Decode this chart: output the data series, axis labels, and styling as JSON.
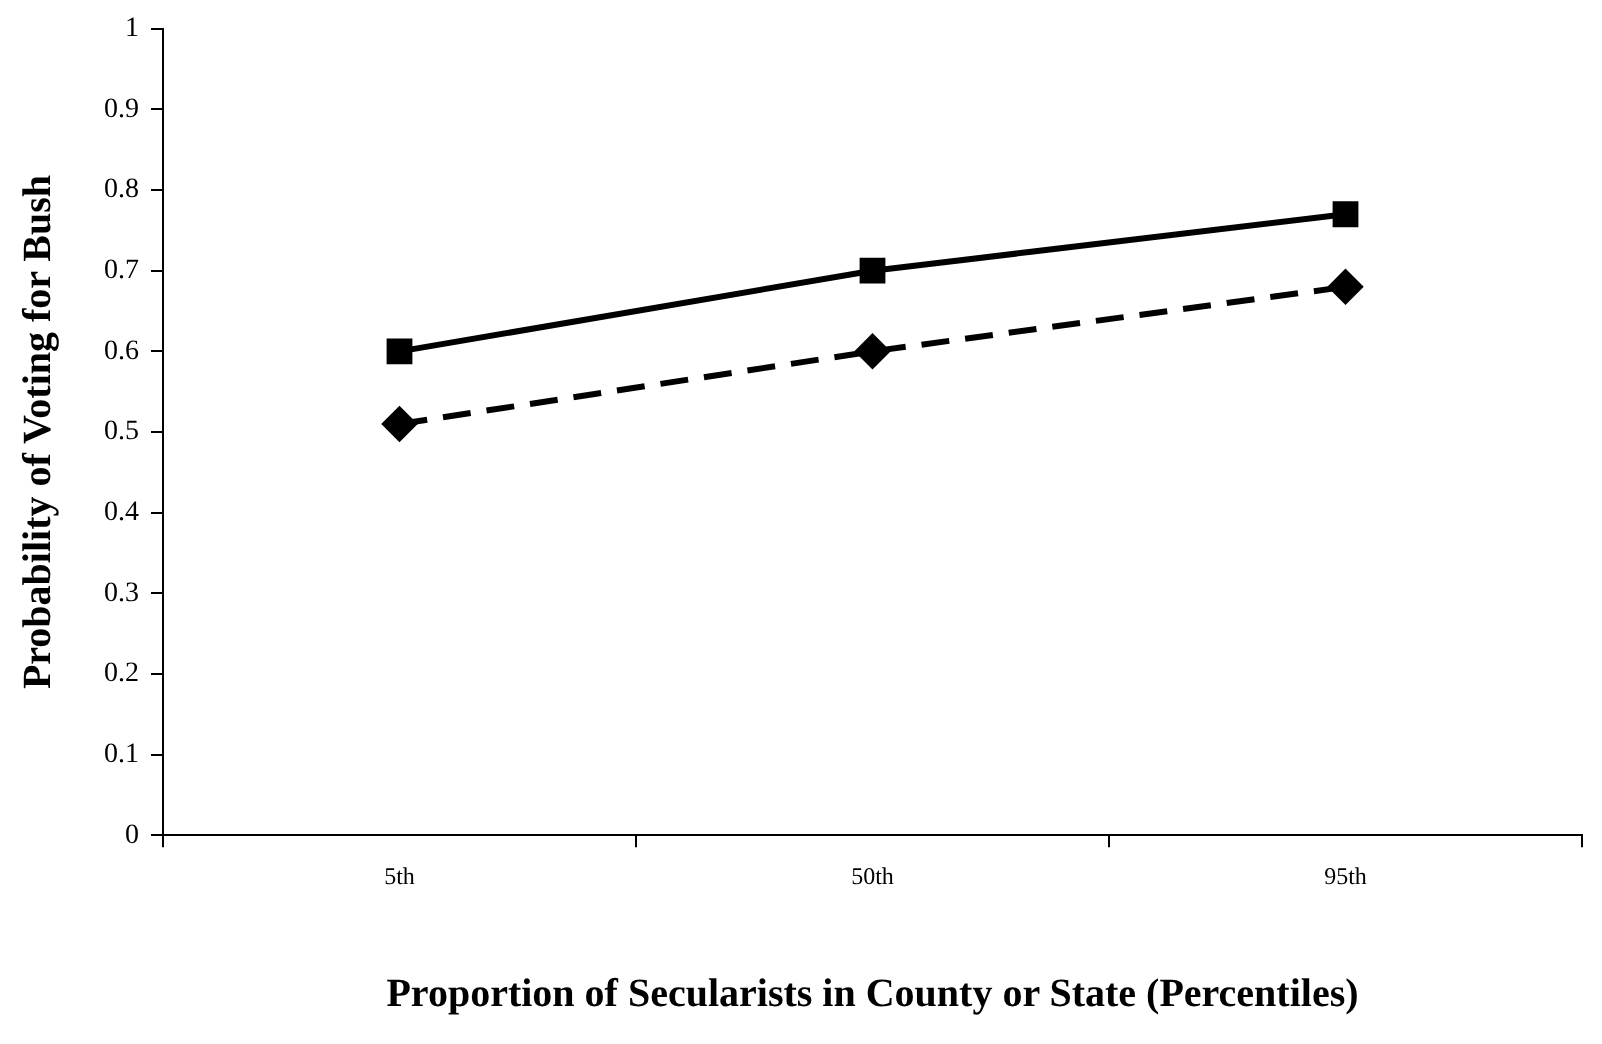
{
  "chart_data": {
    "type": "line",
    "xlabel": "Proportion of Secularists in County or State (Percentiles)",
    "ylabel": "Probability of Voting for Bush",
    "categories": [
      "5th",
      "50th",
      "95th"
    ],
    "series": [
      {
        "color": "#000000",
        "values": [
          0.6,
          0.7,
          0.77
        ],
        "marker": "square",
        "line_style": "solid"
      },
      {
        "color": "#000000",
        "values": [
          0.51,
          0.6,
          0.68
        ],
        "marker": "diamond",
        "line_style": "dashed"
      }
    ],
    "ylim": [
      0,
      1
    ],
    "yticks": [
      0,
      0.1,
      0.2,
      0.3,
      0.4,
      0.5,
      0.6,
      0.7,
      0.8,
      0.9,
      1
    ],
    "grid": false,
    "legend": false
  }
}
